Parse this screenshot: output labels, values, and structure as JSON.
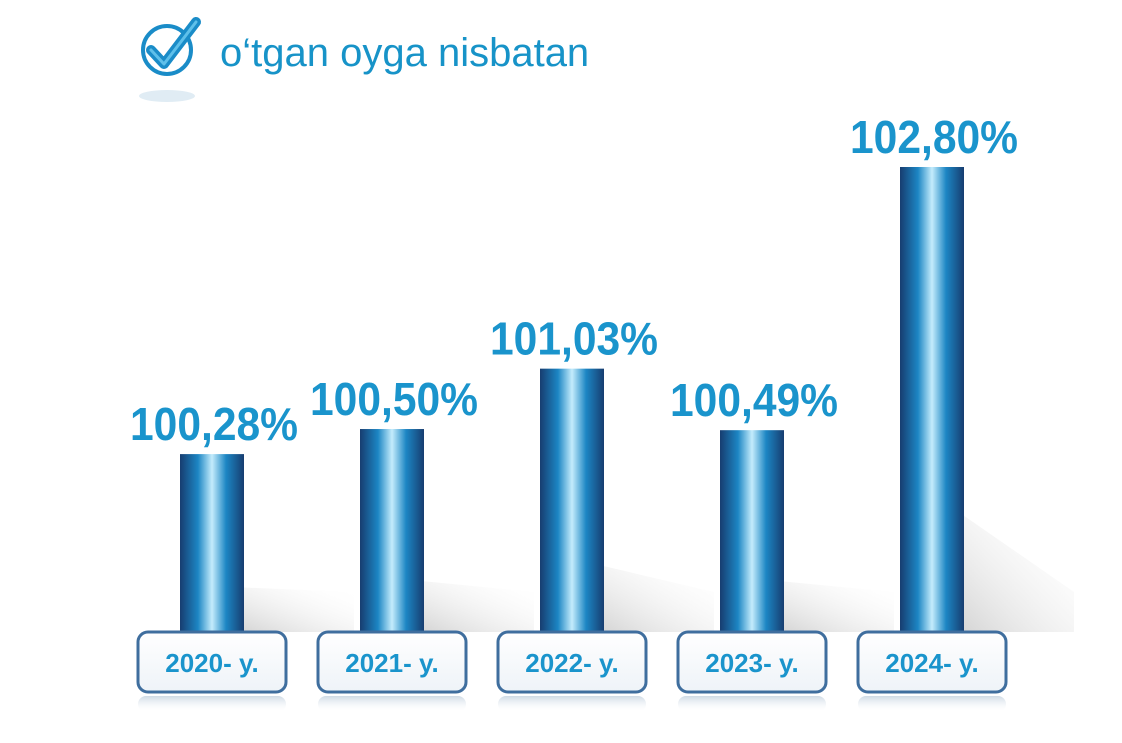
{
  "chart_data": {
    "type": "bar",
    "title": "o‘tgan oyga nisbatan",
    "categories": [
      "2020- y.",
      "2021- y.",
      "2022- y.",
      "2023- y.",
      "2024- y."
    ],
    "values": [
      100.28,
      100.5,
      101.03,
      100.49,
      102.8
    ],
    "value_labels": [
      "100,28%",
      "100,50%",
      "101,03%",
      "100,49%",
      "102,80%"
    ],
    "ylim": [
      100.0,
      102.8
    ],
    "grid": false,
    "legend": "none",
    "colors": {
      "bar_dark": "#173d70",
      "bar_mid": "#1c86c4",
      "bar_light": "#bfe8fb",
      "label": "#1a94cc",
      "box_border": "#3f6e9e"
    },
    "title_icon": "checkmark-circle-icon"
  }
}
